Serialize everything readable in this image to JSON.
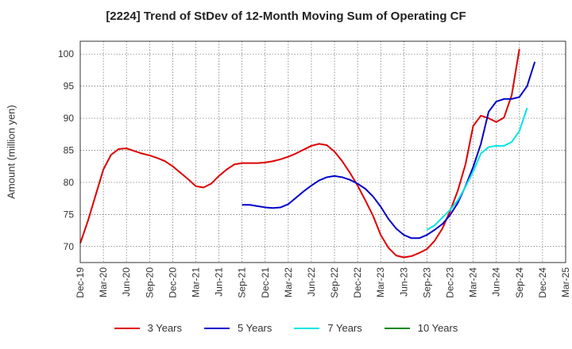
{
  "chart_data": {
    "type": "line",
    "title": "[2224]  Trend of StDev of 12-Month Moving Sum of Operating CF",
    "ylabel": "Amount (million yen)",
    "xlabel": "",
    "x_tick_labels": [
      "Dec-19",
      "Mar-20",
      "Jun-20",
      "Sep-20",
      "Dec-20",
      "Mar-21",
      "Jun-21",
      "Sep-21",
      "Dec-21",
      "Mar-22",
      "Jun-22",
      "Sep-22",
      "Dec-22",
      "Mar-23",
      "Jun-23",
      "Sep-23",
      "Dec-23",
      "Mar-24",
      "Jun-24",
      "Sep-24",
      "Dec-24",
      "Mar-25"
    ],
    "y_ticks": [
      70,
      75,
      80,
      85,
      90,
      95,
      100
    ],
    "ylim": [
      67.5,
      102
    ],
    "grid": true,
    "legend_position": "bottom",
    "series": [
      {
        "name": "3 Years",
        "color": "#dd0000",
        "start_month_index": 0,
        "values": [
          70.5,
          74.0,
          78.0,
          82.0,
          84.3,
          85.2,
          85.3,
          84.9,
          84.5,
          84.2,
          83.8,
          83.3,
          82.5,
          81.5,
          80.5,
          79.4,
          79.2,
          79.8,
          81.0,
          82.0,
          82.8,
          83.0,
          83.0,
          83.0,
          83.1,
          83.3,
          83.6,
          84.0,
          84.5,
          85.1,
          85.7,
          86.0,
          85.8,
          84.8,
          83.3,
          81.5,
          79.5,
          77.2,
          74.8,
          71.8,
          69.8,
          68.6,
          68.3,
          68.5,
          69.0,
          69.6,
          70.9,
          72.8,
          75.5,
          78.7,
          82.8,
          88.8,
          90.4,
          90.0,
          89.4,
          90.1,
          93.6,
          100.8
        ]
      },
      {
        "name": "5 Years",
        "color": "#0000cc",
        "start_month_index": 21,
        "values": [
          76.5,
          76.5,
          76.3,
          76.1,
          76.0,
          76.1,
          76.6,
          77.6,
          78.6,
          79.5,
          80.3,
          80.8,
          81.0,
          80.8,
          80.4,
          79.8,
          79.0,
          77.8,
          76.2,
          74.3,
          72.8,
          71.8,
          71.3,
          71.3,
          71.8,
          72.6,
          73.5,
          74.9,
          76.8,
          79.4,
          82.4,
          86.0,
          91.0,
          92.6,
          93.0,
          93.0,
          93.3,
          95.0,
          98.8
        ]
      },
      {
        "name": "7 Years",
        "color": "#00e5e5",
        "start_month_index": 45,
        "values": [
          72.6,
          73.3,
          74.5,
          75.7,
          77.2,
          79.3,
          81.7,
          84.5,
          85.5,
          85.7,
          85.7,
          86.3,
          88.0,
          91.6
        ]
      },
      {
        "name": "10 Years",
        "color": "#008800",
        "start_month_index": 0,
        "values": []
      }
    ]
  }
}
